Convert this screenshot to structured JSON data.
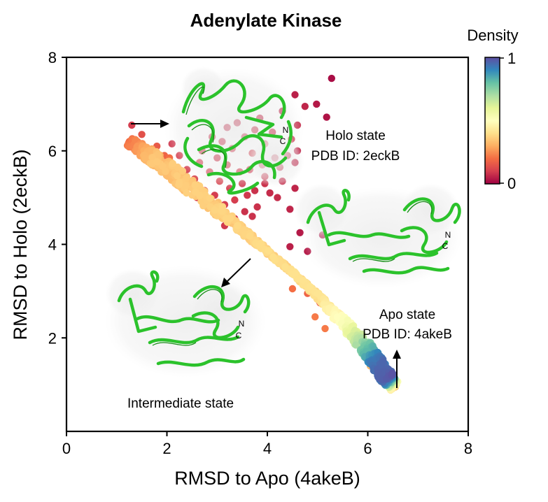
{
  "chart_data": {
    "type": "scatter",
    "title": "Adenylate Kinase",
    "xlabel": "RMSD to Apo (4akeB)",
    "ylabel": "RMSD to Holo (2eckB)",
    "xlim": [
      0,
      8
    ],
    "ylim": [
      0,
      8
    ],
    "xticks": [
      0,
      2,
      4,
      6,
      8
    ],
    "yticks": [
      2,
      4,
      6,
      8
    ],
    "colorbar": {
      "label": "Density",
      "min_label": "0",
      "max_label": "1",
      "colormap": "Spectral"
    },
    "annotations": [
      {
        "id": "holo",
        "lines": [
          "Holo state",
          "PDB ID: 2eckB"
        ]
      },
      {
        "id": "apo",
        "lines": [
          "Apo state",
          "PDB ID: 4akeB"
        ]
      },
      {
        "id": "intermediate",
        "lines": [
          "Intermediate state"
        ]
      }
    ],
    "nc_labels": {
      "n": "N",
      "c": "C"
    },
    "points": [
      {
        "x": 5.28,
        "y": 7.55,
        "d": 0.02
      },
      {
        "x": 4.98,
        "y": 7.0,
        "d": 0.04
      },
      {
        "x": 5.18,
        "y": 6.72,
        "d": 0.03
      },
      {
        "x": 4.55,
        "y": 7.2,
        "d": 0.05
      },
      {
        "x": 4.75,
        "y": 6.95,
        "d": 0.06
      },
      {
        "x": 4.3,
        "y": 6.85,
        "d": 0.06
      },
      {
        "x": 4.6,
        "y": 6.55,
        "d": 0.07
      },
      {
        "x": 4.48,
        "y": 6.25,
        "d": 0.08
      },
      {
        "x": 4.1,
        "y": 6.4,
        "d": 0.08
      },
      {
        "x": 3.85,
        "y": 6.7,
        "d": 0.07
      },
      {
        "x": 3.95,
        "y": 6.15,
        "d": 0.09
      },
      {
        "x": 3.55,
        "y": 6.3,
        "d": 0.08
      },
      {
        "x": 3.7,
        "y": 5.95,
        "d": 0.1
      },
      {
        "x": 3.3,
        "y": 6.05,
        "d": 0.09
      },
      {
        "x": 3.2,
        "y": 5.7,
        "d": 0.1
      },
      {
        "x": 3.45,
        "y": 5.55,
        "d": 0.1
      },
      {
        "x": 3.0,
        "y": 5.85,
        "d": 0.09
      },
      {
        "x": 2.85,
        "y": 5.55,
        "d": 0.1
      },
      {
        "x": 3.05,
        "y": 5.35,
        "d": 0.11
      },
      {
        "x": 2.65,
        "y": 5.75,
        "d": 0.1
      },
      {
        "x": 2.55,
        "y": 5.4,
        "d": 0.11
      },
      {
        "x": 2.4,
        "y": 5.6,
        "d": 0.1
      },
      {
        "x": 2.75,
        "y": 5.15,
        "d": 0.11
      },
      {
        "x": 2.95,
        "y": 5.05,
        "d": 0.1
      },
      {
        "x": 3.25,
        "y": 5.2,
        "d": 0.1
      },
      {
        "x": 3.5,
        "y": 5.3,
        "d": 0.09
      },
      {
        "x": 3.6,
        "y": 5.05,
        "d": 0.09
      },
      {
        "x": 3.35,
        "y": 4.95,
        "d": 0.1
      },
      {
        "x": 3.15,
        "y": 4.85,
        "d": 0.1
      },
      {
        "x": 3.75,
        "y": 5.15,
        "d": 0.08
      },
      {
        "x": 3.95,
        "y": 5.45,
        "d": 0.08
      },
      {
        "x": 4.05,
        "y": 5.1,
        "d": 0.07
      },
      {
        "x": 3.8,
        "y": 4.8,
        "d": 0.08
      },
      {
        "x": 3.55,
        "y": 4.7,
        "d": 0.08
      },
      {
        "x": 3.35,
        "y": 4.55,
        "d": 0.09
      },
      {
        "x": 2.85,
        "y": 4.85,
        "d": 0.1
      },
      {
        "x": 2.2,
        "y": 5.45,
        "d": 0.11
      },
      {
        "x": 2.35,
        "y": 5.15,
        "d": 0.11
      },
      {
        "x": 2.6,
        "y": 5.0,
        "d": 0.11
      },
      {
        "x": 2.05,
        "y": 5.7,
        "d": 0.1
      },
      {
        "x": 4.25,
        "y": 5.65,
        "d": 0.07
      },
      {
        "x": 4.4,
        "y": 5.9,
        "d": 0.07
      },
      {
        "x": 4.15,
        "y": 5.85,
        "d": 0.08
      },
      {
        "x": 3.9,
        "y": 5.7,
        "d": 0.08
      },
      {
        "x": 3.65,
        "y": 5.6,
        "d": 0.09
      },
      {
        "x": 4.55,
        "y": 5.75,
        "d": 0.06
      },
      {
        "x": 4.6,
        "y": 6.0,
        "d": 0.06
      },
      {
        "x": 3.1,
        "y": 6.2,
        "d": 0.08
      },
      {
        "x": 3.4,
        "y": 6.6,
        "d": 0.07
      },
      {
        "x": 3.75,
        "y": 6.45,
        "d": 0.08
      },
      {
        "x": 3.2,
        "y": 6.5,
        "d": 0.07
      },
      {
        "x": 2.9,
        "y": 6.3,
        "d": 0.08
      },
      {
        "x": 2.7,
        "y": 6.0,
        "d": 0.09
      },
      {
        "x": 3.95,
        "y": 5.3,
        "d": 0.08
      },
      {
        "x": 4.3,
        "y": 5.35,
        "d": 0.07
      },
      {
        "x": 4.55,
        "y": 5.2,
        "d": 0.06
      },
      {
        "x": 4.2,
        "y": 5.0,
        "d": 0.07
      },
      {
        "x": 3.7,
        "y": 4.6,
        "d": 0.08
      },
      {
        "x": 4.45,
        "y": 4.75,
        "d": 0.06
      },
      {
        "x": 3.15,
        "y": 4.4,
        "d": 0.09
      },
      {
        "x": 2.1,
        "y": 6.15,
        "d": 0.09
      },
      {
        "x": 2.25,
        "y": 5.9,
        "d": 0.1
      },
      {
        "x": 4.45,
        "y": 3.95,
        "d": 0.05
      },
      {
        "x": 4.8,
        "y": 3.85,
        "d": 0.04
      },
      {
        "x": 4.65,
        "y": 4.25,
        "d": 0.04
      },
      {
        "x": 5.1,
        "y": 4.2,
        "d": 0.03
      },
      {
        "x": 1.3,
        "y": 6.55,
        "d": 0.1
      },
      {
        "x": 1.5,
        "y": 6.35,
        "d": 0.14
      },
      {
        "x": 1.8,
        "y": 6.1,
        "d": 0.16
      },
      {
        "x": 1.95,
        "y": 5.9,
        "d": 0.18
      },
      {
        "x": 1.55,
        "y": 5.85,
        "d": 0.22
      },
      {
        "x": 1.75,
        "y": 5.75,
        "d": 0.24
      },
      {
        "x": 2.05,
        "y": 5.85,
        "d": 0.2
      },
      {
        "x": 1.4,
        "y": 6.1,
        "d": 0.18
      },
      {
        "x": 5.05,
        "y": 2.75,
        "d": 0.16
      },
      {
        "x": 5.2,
        "y": 2.6,
        "d": 0.2
      },
      {
        "x": 4.8,
        "y": 2.95,
        "d": 0.18
      },
      {
        "x": 5.4,
        "y": 2.4,
        "d": 0.22
      },
      {
        "x": 4.95,
        "y": 2.45,
        "d": 0.22
      },
      {
        "x": 5.15,
        "y": 2.2,
        "d": 0.22
      },
      {
        "x": 4.5,
        "y": 3.05,
        "d": 0.2
      },
      {
        "x": 5.0,
        "y": 2.95,
        "d": 0.2
      },
      {
        "x": 6.2,
        "y": 1.2,
        "d": 0.3
      },
      {
        "x": 6.3,
        "y": 1.05,
        "d": 0.32
      },
      {
        "x": 6.05,
        "y": 1.4,
        "d": 0.32
      },
      {
        "x": 6.55,
        "y": 0.95,
        "d": 0.36
      }
    ]
  }
}
